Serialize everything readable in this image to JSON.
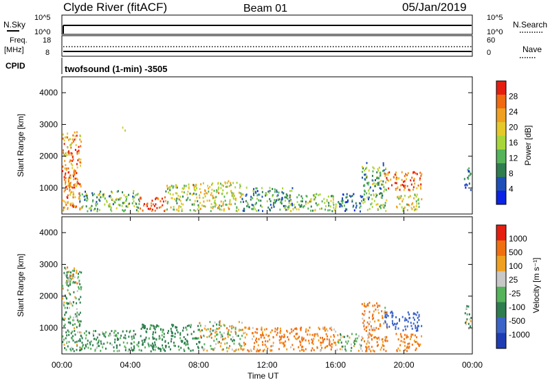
{
  "header": {
    "station": "Clyde River (fitACF)",
    "beam": "Beam 01",
    "date": "05/Jan/2019"
  },
  "status_panel": {
    "nsky_label": "N.Sky",
    "nsky_ticks": [
      "10^5",
      "10^0"
    ],
    "nsearch_label": "N.Search",
    "nsearch_ticks": [
      "10^5",
      "10^0"
    ],
    "freq_label_1": "Freq.",
    "freq_label_2": "[MHz]",
    "freq_ticks": [
      "18",
      "8"
    ],
    "nave_label": "Nave",
    "nave_ticks": [
      "60",
      "0"
    ],
    "cpid_label": "CPID",
    "cpid_value": "twofsound (1-min) -3505"
  },
  "x_axis": {
    "label": "Time UT",
    "ticks": [
      "00:00",
      "04:00",
      "08:00",
      "12:00",
      "16:00",
      "20:00",
      "00:00"
    ]
  },
  "panels": [
    {
      "ylabel": "Slant Range [km]",
      "yticks": [
        "4000",
        "3000",
        "2000",
        "1000"
      ],
      "colorbar_label": "Power [dB]",
      "colorbar_ticks": [
        "28",
        "24",
        "20",
        "16",
        "12",
        "8",
        "4"
      ],
      "colors": [
        "#0a23e6",
        "#1e4fb8",
        "#2e7d4f",
        "#55b35a",
        "#a8d63a",
        "#e5c82a",
        "#f0a020",
        "#f06a10",
        "#e51e10"
      ]
    },
    {
      "ylabel": "Slant Range [km]",
      "yticks": [
        "4000",
        "3000",
        "2000",
        "1000"
      ],
      "colorbar_label": "Velocity [m s⁻¹]",
      "colorbar_ticks": [
        "1000",
        "500",
        "100",
        "25",
        "-25",
        "-100",
        "-500",
        "-1000"
      ],
      "colors": [
        "#1e3cb4",
        "#3c64c8",
        "#2e7d4f",
        "#55b35a",
        "#c8c8c8",
        "#f0a020",
        "#f07010",
        "#e51e10"
      ]
    }
  ],
  "chart_data": {
    "type": "heatmap",
    "x_range_hours": [
      0,
      24
    ],
    "y_range_km": [
      180,
      4500
    ],
    "power_scatter_regions": [
      {
        "t0": 0.0,
        "t1": 1.1,
        "r0": 250,
        "r1": 2800,
        "power": 24
      },
      {
        "t0": 0.1,
        "t1": 0.9,
        "r0": 900,
        "r1": 1500,
        "power": 28
      },
      {
        "t0": 1.0,
        "t1": 3.0,
        "r0": 250,
        "r1": 900,
        "power": 12
      },
      {
        "t0": 3.0,
        "t1": 4.5,
        "r0": 250,
        "r1": 900,
        "power": 14
      },
      {
        "t0": 3.5,
        "t1": 3.7,
        "r0": 2700,
        "r1": 2900,
        "power": 18
      },
      {
        "t0": 4.5,
        "t1": 6.0,
        "r0": 250,
        "r1": 700,
        "power": 28
      },
      {
        "t0": 6.0,
        "t1": 8.0,
        "r0": 250,
        "r1": 1100,
        "power": 16
      },
      {
        "t0": 8.0,
        "t1": 10.5,
        "r0": 250,
        "r1": 1200,
        "power": 18
      },
      {
        "t0": 10.5,
        "t1": 13.5,
        "r0": 250,
        "r1": 1000,
        "power": 10
      },
      {
        "t0": 13.0,
        "t1": 16.0,
        "r0": 250,
        "r1": 800,
        "power": 14
      },
      {
        "t0": 16.0,
        "t1": 17.5,
        "r0": 250,
        "r1": 800,
        "power": 8
      },
      {
        "t0": 17.5,
        "t1": 19.0,
        "r0": 250,
        "r1": 1800,
        "power": 12
      },
      {
        "t0": 18.8,
        "t1": 21.0,
        "r0": 900,
        "r1": 1500,
        "power": 26
      },
      {
        "t0": 19.5,
        "t1": 21.0,
        "r0": 250,
        "r1": 800,
        "power": 18
      },
      {
        "t0": 23.5,
        "t1": 23.9,
        "r0": 900,
        "r1": 1700,
        "power": 8
      }
    ],
    "velocity_scatter_regions": [
      {
        "t0": 0.0,
        "t1": 1.1,
        "r0": 250,
        "r1": 2800,
        "velocity": 100
      },
      {
        "t0": 0.1,
        "t1": 0.9,
        "r0": 2300,
        "r1": 2900,
        "velocity": 0
      },
      {
        "t0": 1.0,
        "t1": 4.5,
        "r0": 250,
        "r1": 900,
        "velocity": 150
      },
      {
        "t0": 4.5,
        "t1": 8.0,
        "r0": 250,
        "r1": 1100,
        "velocity": 200
      },
      {
        "t0": 8.0,
        "t1": 10.5,
        "r0": 250,
        "r1": 1200,
        "velocity": 0
      },
      {
        "t0": 10.5,
        "t1": 16.0,
        "r0": 250,
        "r1": 1000,
        "velocity": -150
      },
      {
        "t0": 16.0,
        "t1": 17.5,
        "r0": 250,
        "r1": 800,
        "velocity": 50
      },
      {
        "t0": 17.5,
        "t1": 19.0,
        "r0": 250,
        "r1": 1800,
        "velocity": -120
      },
      {
        "t0": 18.8,
        "t1": 21.0,
        "r0": 900,
        "r1": 1500,
        "velocity": 800
      },
      {
        "t0": 19.5,
        "t1": 21.0,
        "r0": 250,
        "r1": 800,
        "velocity": -200
      },
      {
        "t0": 23.5,
        "t1": 23.9,
        "r0": 900,
        "r1": 1700,
        "velocity": 100
      }
    ]
  }
}
